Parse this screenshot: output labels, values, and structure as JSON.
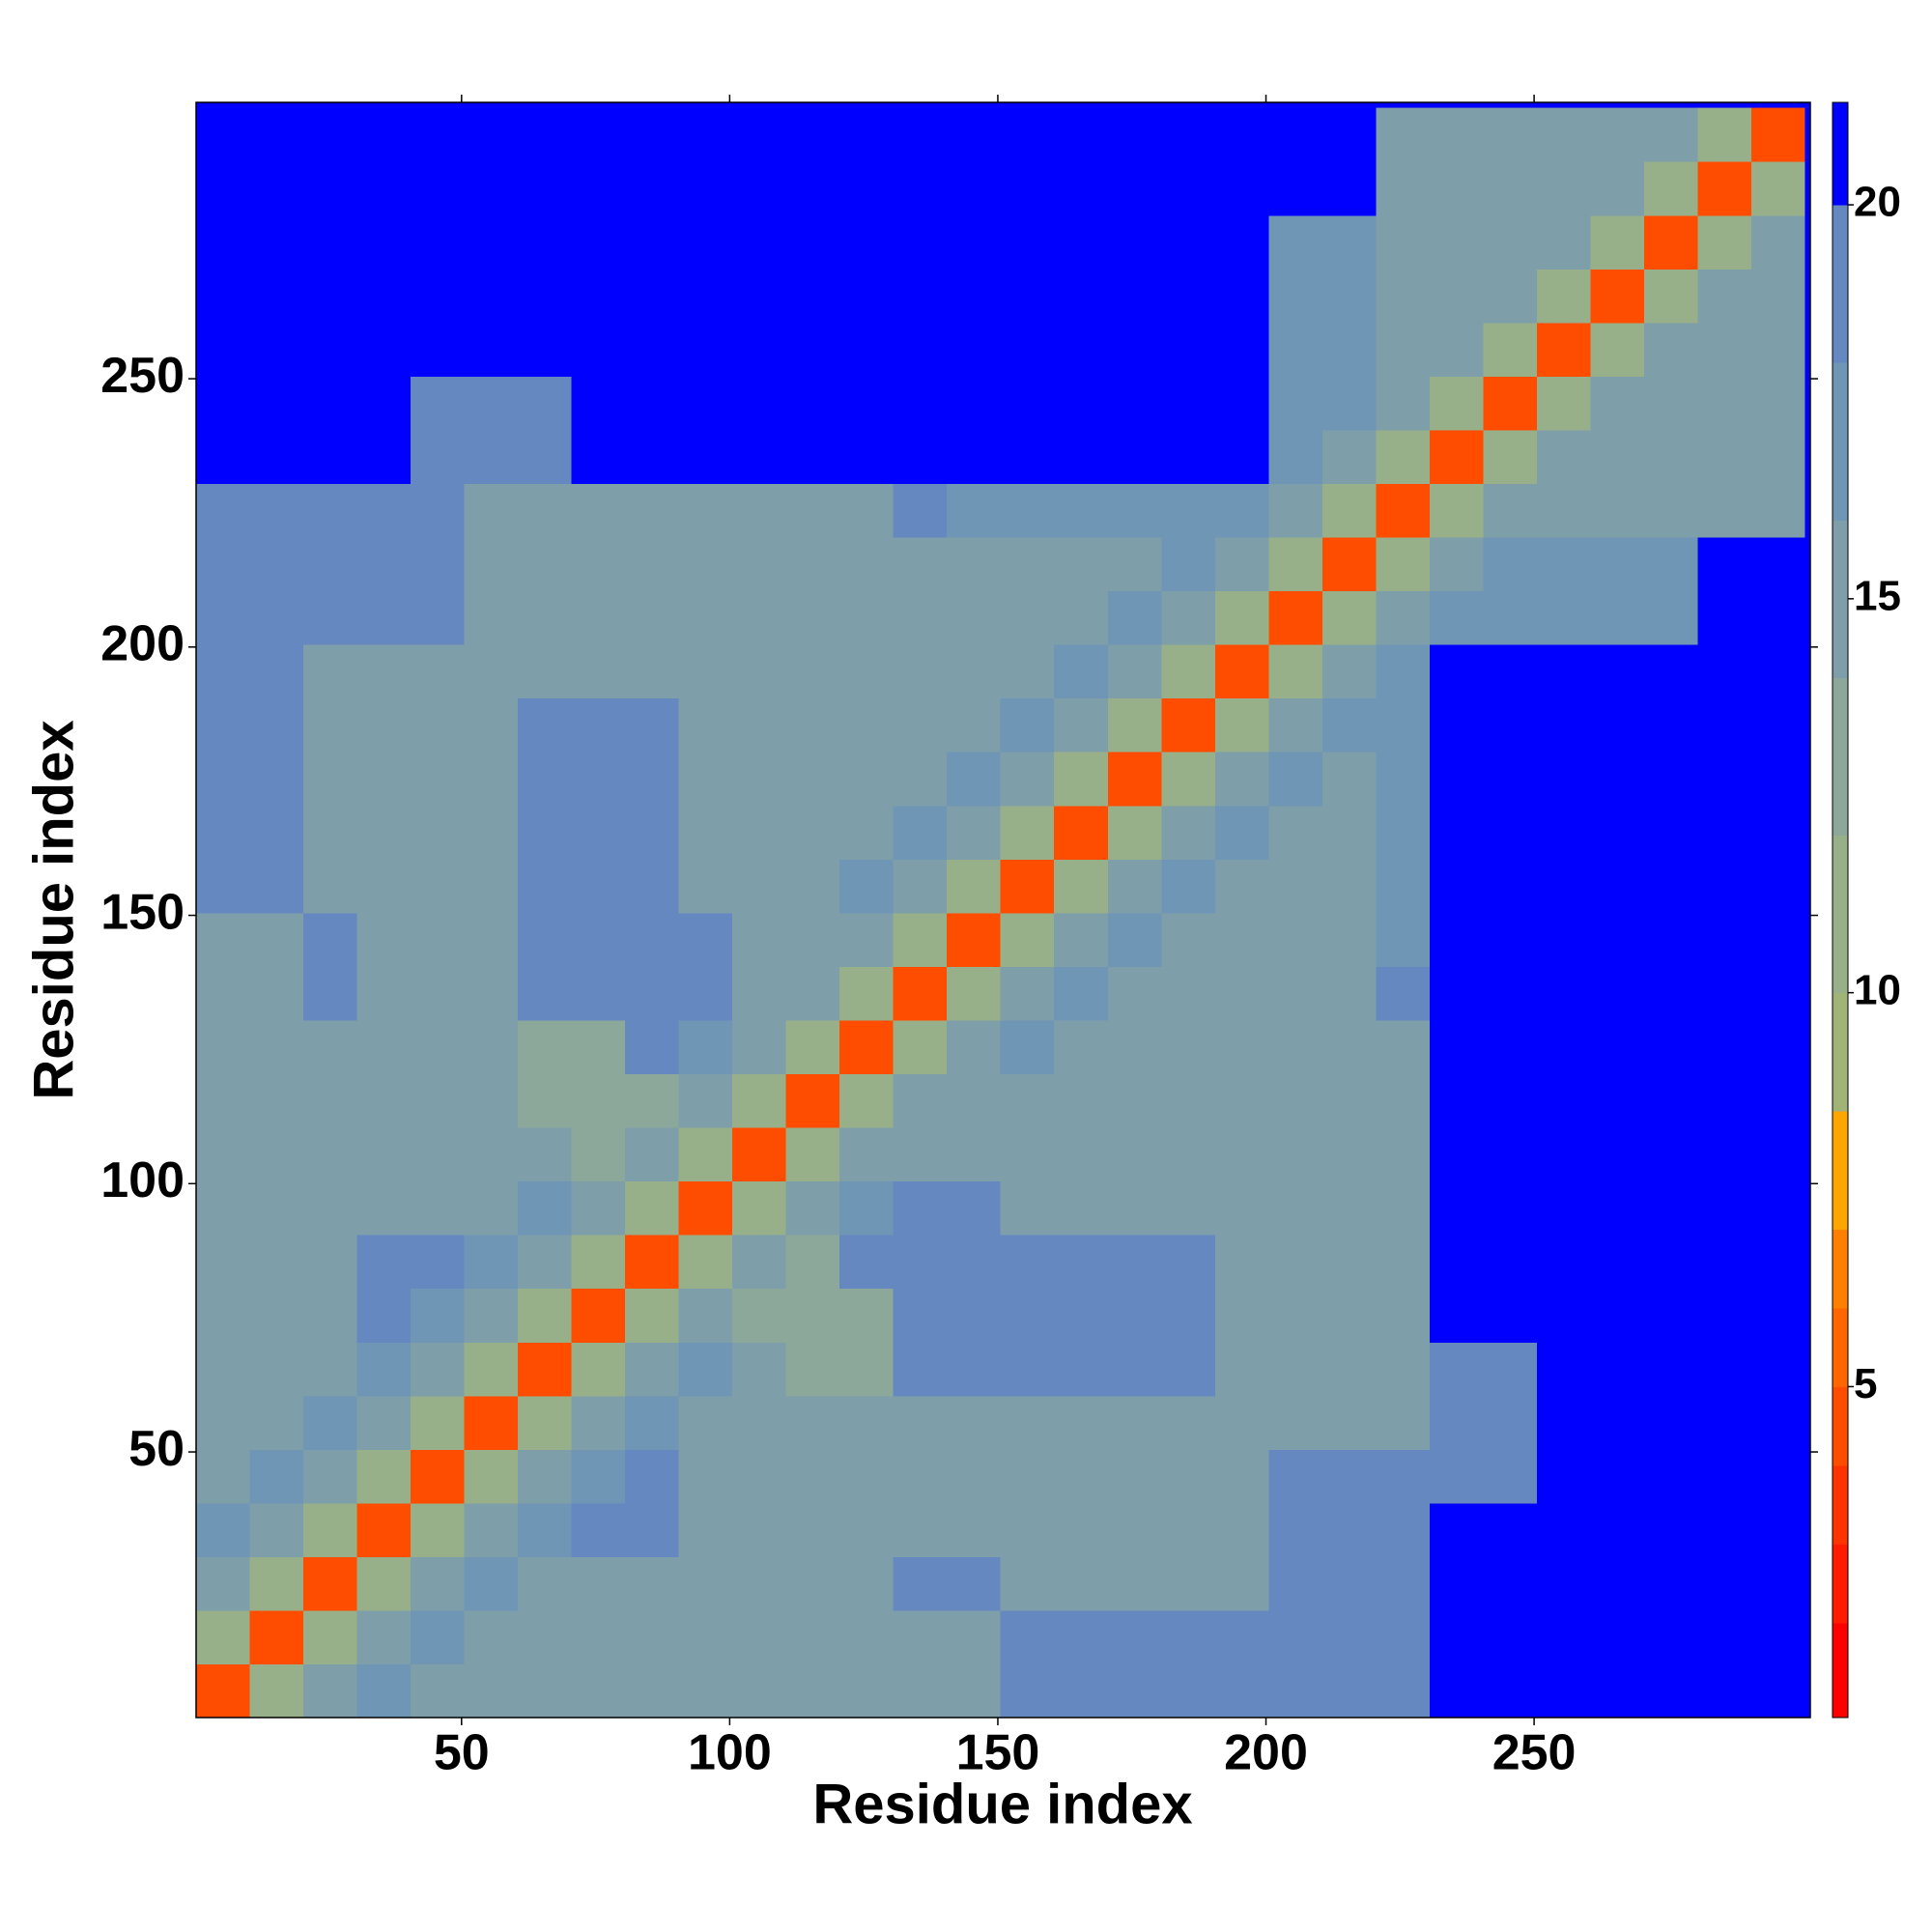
{
  "chart_data": {
    "type": "heatmap",
    "x_label": "Residue index",
    "y_label": "Residue index",
    "xlim": [
      0.5,
      301.5
    ],
    "ylim": [
      0.5,
      301.5
    ],
    "xticks": [
      50,
      100,
      150,
      200,
      250
    ],
    "yticks": [
      50,
      100,
      150,
      200,
      250
    ],
    "bins": [
      0.5,
      10.5,
      20.5,
      30.5,
      40.5,
      50.5,
      60.5,
      70.5,
      80.5,
      90.5,
      100.5,
      110.5,
      120.5,
      130.5,
      140.5,
      150.5,
      160.5,
      170.5,
      180.5,
      190.5,
      200.5,
      210.5,
      220.5,
      230.5,
      240.5,
      250.5,
      260.5,
      270.5,
      280.5,
      290.5,
      300.5
    ],
    "symmetric": true,
    "values": [
      [
        5,
        11,
        15,
        18,
        15,
        15,
        15,
        15,
        15,
        15,
        15,
        15,
        15,
        16,
        16,
        19,
        19,
        19,
        19,
        19,
        19,
        19,
        19,
        21,
        21,
        21,
        21,
        21,
        21,
        21
      ],
      [
        5,
        11,
        15,
        18,
        15,
        15,
        15,
        15,
        15,
        15,
        15,
        15,
        16,
        16,
        19,
        19,
        19,
        19,
        19,
        19,
        19,
        19,
        21,
        21,
        21,
        21,
        21,
        21,
        21
      ],
      [
        5,
        11,
        15,
        18,
        15,
        15,
        15,
        15,
        15,
        15,
        15,
        19,
        19,
        15,
        15,
        15,
        15,
        15,
        19,
        19,
        19,
        21,
        21,
        21,
        21,
        21,
        21,
        21
      ],
      [
        5,
        11,
        15,
        18,
        19,
        19,
        15,
        15,
        15,
        15,
        15,
        15,
        15,
        15,
        15,
        15,
        15,
        19,
        19,
        19,
        21,
        21,
        21,
        21,
        21,
        21,
        21
      ],
      [
        5,
        11,
        15,
        18,
        19,
        15,
        15,
        15,
        15,
        15,
        15,
        15,
        15,
        15,
        15,
        15,
        19,
        19,
        19,
        19,
        19,
        21,
        21,
        21,
        21,
        21
      ],
      [
        5,
        11,
        15,
        18,
        15,
        15,
        15,
        15,
        15,
        15,
        15,
        15,
        15,
        15,
        15,
        15,
        15,
        15,
        19,
        19,
        21,
        21,
        21,
        21,
        21
      ],
      [
        5,
        11,
        15,
        18,
        16,
        14,
        14,
        19,
        19,
        19,
        19,
        19,
        19,
        15,
        15,
        15,
        15,
        19,
        19,
        21,
        21,
        21,
        21,
        21
      ],
      [
        5,
        11,
        15,
        14,
        14,
        14,
        19,
        19,
        19,
        19,
        19,
        19,
        15,
        15,
        15,
        15,
        21,
        21,
        21,
        21,
        21,
        21,
        21
      ],
      [
        5,
        11,
        15,
        14,
        19,
        19,
        19,
        19,
        19,
        19,
        19,
        15,
        15,
        15,
        15,
        21,
        21,
        21,
        21,
        21,
        21,
        21
      ],
      [
        5,
        11,
        15,
        18,
        19,
        19,
        15,
        15,
        15,
        15,
        15,
        15,
        15,
        15,
        21,
        21,
        21,
        21,
        21,
        21,
        21
      ],
      [
        5,
        11,
        15,
        15,
        15,
        15,
        15,
        15,
        15,
        15,
        15,
        15,
        15,
        21,
        21,
        21,
        21,
        21,
        21,
        21
      ],
      [
        5,
        11,
        15,
        15,
        15,
        15,
        15,
        15,
        15,
        15,
        15,
        15,
        21,
        21,
        21,
        21,
        21,
        21,
        21
      ],
      [
        5,
        11,
        15,
        18,
        15,
        15,
        15,
        15,
        15,
        15,
        15,
        21,
        21,
        21,
        21,
        21,
        21,
        21
      ],
      [
        5,
        11,
        15,
        18,
        16,
        16,
        16,
        16,
        16,
        19,
        21,
        21,
        21,
        21,
        21,
        21,
        21
      ],
      [
        5,
        11,
        15,
        18,
        16,
        16,
        16,
        16,
        17,
        21,
        21,
        21,
        21,
        21,
        21,
        21
      ],
      [
        5,
        11,
        15,
        18,
        16,
        16,
        16,
        17,
        21,
        21,
        21,
        21,
        21,
        21,
        21
      ],
      [
        5,
        11,
        15,
        18,
        16,
        16,
        17,
        21,
        21,
        21,
        21,
        21,
        21,
        21
      ],
      [
        5,
        11,
        15,
        18,
        16,
        17,
        21,
        21,
        21,
        21,
        21,
        21,
        21
      ],
      [
        5,
        11,
        15,
        18,
        17,
        21,
        21,
        21,
        21,
        21,
        21,
        21
      ],
      [
        5,
        11,
        15,
        18,
        21,
        21,
        21,
        21,
        21,
        21,
        21
      ],
      [
        5,
        11,
        15,
        18,
        18,
        18,
        18,
        18,
        21,
        21
      ],
      [
        5,
        11,
        15,
        18,
        18,
        18,
        18,
        21,
        21
      ],
      [
        5,
        11,
        15,
        15,
        15,
        15,
        15,
        15
      ],
      [
        5,
        11,
        15,
        15,
        15,
        15,
        15
      ],
      [
        5,
        11,
        15,
        15,
        15,
        15
      ],
      [
        5,
        11,
        15,
        15,
        15
      ],
      [
        5,
        11,
        15,
        15
      ],
      [
        5,
        11,
        15
      ],
      [
        5,
        11
      ],
      [
        5
      ]
    ],
    "colorbar": {
      "lim": [
        0.8,
        21.3
      ],
      "ticks": [
        5,
        10,
        15,
        20
      ],
      "levels": [
        0.8,
        2,
        3,
        4,
        5,
        6,
        7,
        8.5,
        10,
        12,
        14,
        16,
        18,
        20,
        21.3
      ],
      "colors": [
        "#ff0000",
        "#ff1a00",
        "#ff3300",
        "#ff4d00",
        "#ff6600",
        "#ff8000",
        "#ffa500",
        "#a0b478",
        "#98b08a",
        "#8ca89a",
        "#7e9eaa",
        "#7096b6",
        "#6688c0",
        "#0000ff"
      ]
    }
  }
}
